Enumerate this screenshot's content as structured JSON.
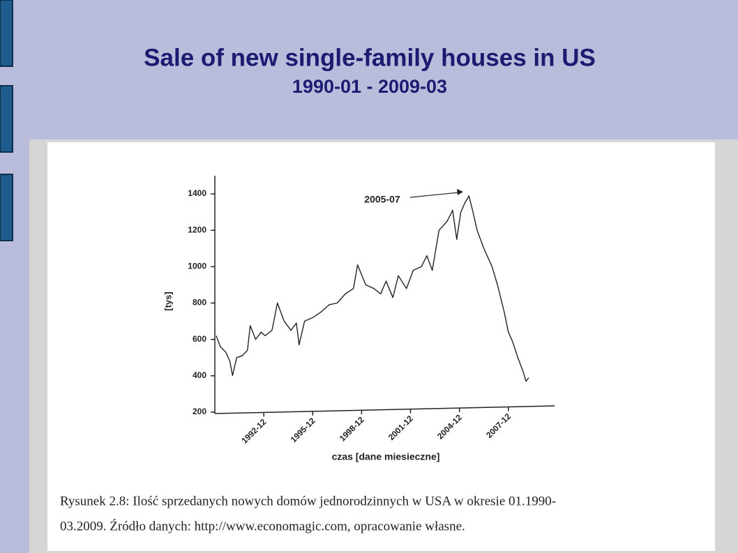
{
  "title": "Sale of new single-family houses in US",
  "subtitle": "1990-01 - 2009-03",
  "chart_data": {
    "type": "line",
    "ylabel": "[tys]",
    "xlabel": "czas [dane miesieczne]",
    "annotation": "2005-07",
    "x": [
      "1990-01",
      "1990-04",
      "1990-08",
      "1990-11",
      "1991-01",
      "1991-04",
      "1991-08",
      "1991-12",
      "1992-02",
      "1992-06",
      "1992-10",
      "1993-01",
      "1993-06",
      "1993-10",
      "1994-03",
      "1994-08",
      "1994-12",
      "1995-02",
      "1995-06",
      "1995-12",
      "1996-06",
      "1996-12",
      "1997-06",
      "1997-12",
      "1998-06",
      "1998-09",
      "1999-03",
      "1999-09",
      "2000-02",
      "2000-06",
      "2000-11",
      "2001-03",
      "2001-09",
      "2002-02",
      "2002-08",
      "2002-12",
      "2003-04",
      "2003-09",
      "2004-03",
      "2004-07",
      "2004-10",
      "2005-01",
      "2005-04",
      "2005-07",
      "2005-10",
      "2006-01",
      "2006-06",
      "2006-12",
      "2007-04",
      "2007-09",
      "2007-12",
      "2008-03",
      "2008-07",
      "2008-11",
      "2009-01",
      "2009-03"
    ],
    "values": [
      620,
      560,
      530,
      480,
      401,
      500,
      510,
      540,
      676,
      600,
      640,
      620,
      650,
      800,
      700,
      650,
      690,
      570,
      700,
      720,
      750,
      790,
      800,
      850,
      880,
      1010,
      900,
      880,
      850,
      920,
      830,
      950,
      880,
      980,
      1000,
      1060,
      980,
      1200,
      1250,
      1310,
      1150,
      1300,
      1350,
      1389,
      1300,
      1200,
      1100,
      1000,
      900,
      750,
      640,
      590,
      500,
      420,
      370,
      390
    ],
    "color": "#222222",
    "xlim": [
      "1990-01",
      "2010-10"
    ],
    "xticks": [
      "1992-12",
      "1995-12",
      "1998-12",
      "2001-12",
      "2004-12",
      "2007-12"
    ],
    "ylim": [
      200,
      1500
    ],
    "yticks": [
      200,
      400,
      600,
      800,
      1000,
      1200,
      1400
    ],
    "caption": [
      "Rysunek 2.8: Ilość sprzedanych nowych domów jednorodzinnych w USA w okresie 01.1990-",
      "03.2009. Źródło danych: http://www.economagic.com, opracowanie własne."
    ]
  }
}
